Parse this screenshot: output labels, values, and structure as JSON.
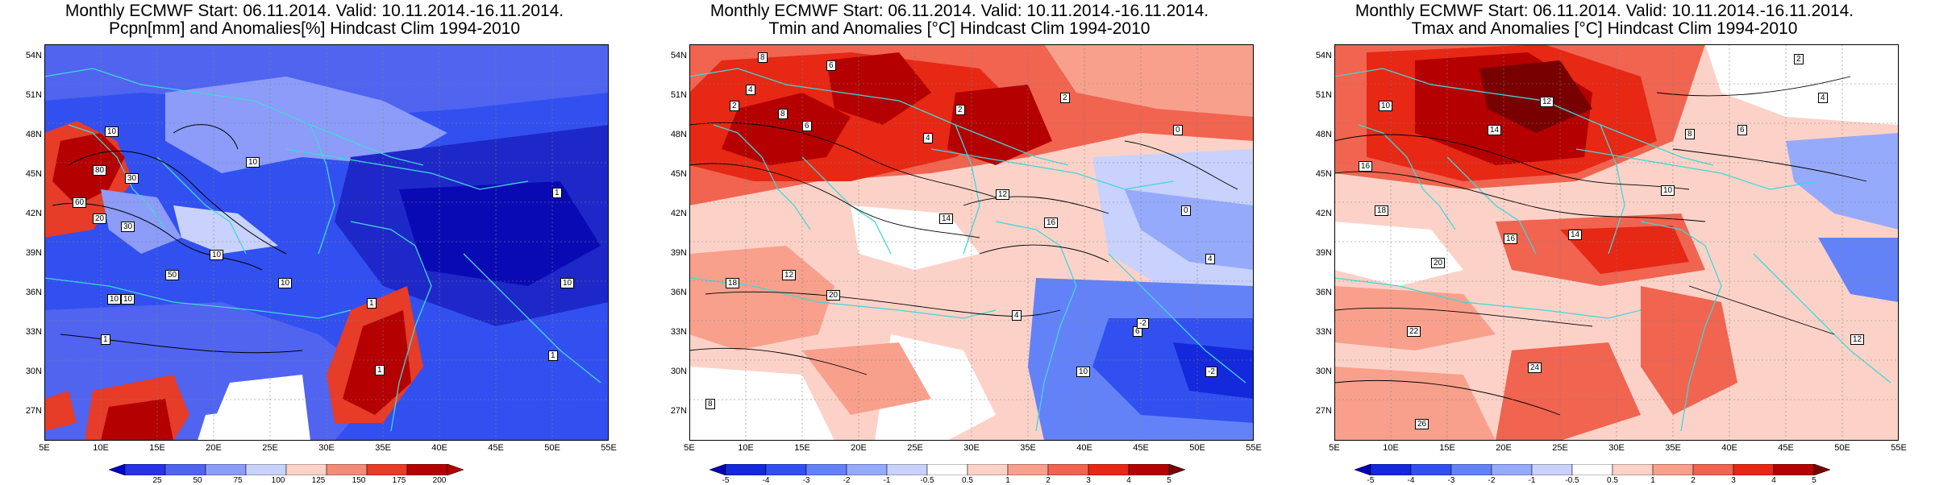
{
  "panels": [
    {
      "id": "pcpn",
      "title_line1": "Monthly ECMWF Start: 06.11.2014. Valid: 10.11.2014.-16.11.2014.",
      "title_line2": "Pcpn[mm] and Anomalies[%] Hindcast Clim 1994-2010",
      "colorbar_labels": [
        "25",
        "50",
        "75",
        "100",
        "125",
        "150",
        "175",
        "200"
      ],
      "colorbar_colors": [
        "#0000c8",
        "#2832e6",
        "#5064f0",
        "#8c9cf8",
        "#c8d2fc",
        "#fcd2c8",
        "#f08c78",
        "#e63c28",
        "#b40000"
      ],
      "contour_labels": [
        "10",
        "1",
        "30",
        "10",
        "60",
        "80",
        "20",
        "50",
        "10",
        "1",
        "10",
        "1",
        "10",
        "1",
        "10",
        "30",
        "1",
        "10"
      ]
    },
    {
      "id": "tmin",
      "title_line1": "Monthly ECMWF Start: 06.11.2014. Valid: 10.11.2014.-16.11.2014.",
      "title_line2": "Tmin and Anomalies [°C] Hindcast Clim 1994-2010",
      "colorbar_labels": [
        "-5",
        "-4",
        "-3",
        "-2",
        "-1",
        "-0.5",
        "0.5",
        "1",
        "2",
        "3",
        "4",
        "5"
      ],
      "colorbar_colors": [
        "#0000b4",
        "#1428dc",
        "#3250f0",
        "#6482f8",
        "#96aafc",
        "#c8d2fc",
        "#ffffff",
        "#fcd2c8",
        "#f8a08c",
        "#f06450",
        "#e62814",
        "#b40000",
        "#780000"
      ],
      "contour_labels": [
        "8",
        "6",
        "4",
        "2",
        "2",
        "6",
        "8",
        "4",
        "2",
        "0",
        "12",
        "16",
        "14",
        "20",
        "18",
        "12",
        "10",
        "8",
        "6",
        "4",
        "0",
        "-2",
        "-2",
        "4"
      ]
    },
    {
      "id": "tmax",
      "title_line1": "Monthly ECMWF Start: 06.11.2014. Valid: 10.11.2014.-16.11.2014.",
      "title_line2": "Tmax and Anomalies [°C] Hindcast Clim 1994-2010",
      "colorbar_labels": [
        "-5",
        "-4",
        "-3",
        "-2",
        "-1",
        "-0.5",
        "0.5",
        "1",
        "2",
        "3",
        "4",
        "5"
      ],
      "colorbar_colors": [
        "#0000b4",
        "#1428dc",
        "#3250f0",
        "#6482f8",
        "#96aafc",
        "#c8d2fc",
        "#ffffff",
        "#fcd2c8",
        "#f8a08c",
        "#f06450",
        "#e62814",
        "#b40000",
        "#780000"
      ],
      "contour_labels": [
        "2",
        "4",
        "6",
        "8",
        "10",
        "12",
        "14",
        "16",
        "18",
        "20",
        "22",
        "24",
        "26",
        "10",
        "12",
        "14",
        "16"
      ]
    }
  ],
  "lat_labels": [
    "54N",
    "51N",
    "48N",
    "45N",
    "42N",
    "39N",
    "36N",
    "33N",
    "30N",
    "27N"
  ],
  "lon_labels": [
    "5E",
    "10E",
    "15E",
    "20E",
    "25E",
    "30E",
    "35E",
    "40E",
    "45E",
    "50E",
    "55E"
  ]
}
